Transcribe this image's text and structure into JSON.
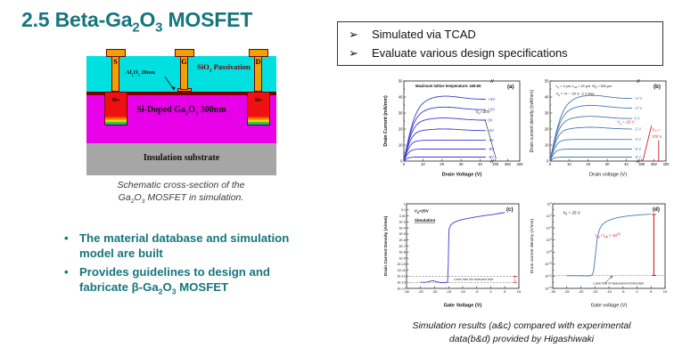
{
  "accent_teal": "#15767d",
  "title_html": "2.5 Beta-Ga<sub>2</sub>O<sub>3</sub> MOSFET",
  "tcad_box": {
    "glyph": "➢",
    "items": [
      "Simulated via TCAD",
      "Evaluate various design specifications"
    ]
  },
  "schematic": {
    "electrodes": {
      "source": "S",
      "gate": "G",
      "drain": "D"
    },
    "passivation_html": "SiO<sub>2</sub> Passivation",
    "gate_oxide_html": "Al<sub>2</sub>O<sub>3</sub> 20nm",
    "si_plus": "Si+",
    "channel_html": "Si-Doped Ga<sub>2</sub>O<sub>3</sub> 300nm",
    "substrate": "Insulation substrate",
    "colors": {
      "passivation": "#00e0e0",
      "oxide": "#7b0000",
      "channel": "#e800e8",
      "substrate": "#a6a6a6",
      "electrode": "#f0a202",
      "si_plus": "#ee1111"
    },
    "caption_html": "Schematic cross-section of the<br>Ga<sub>2</sub>O<sub>3</sub> MOSFET in simulation."
  },
  "bullets": {
    "glyph": "•",
    "items_html": [
      "The material database and simulation model are built",
      "Provides guidelines to design and fabricate β-Ga<sub>2</sub>O<sub>3</sub> MOSFET"
    ]
  },
  "figure_caption_html": "Simulation results (a&amp;c) compared with experimental<br>data(b&amp;d) provided by Higashiwaki",
  "chart_data": [
    {
      "id": "a",
      "type": "line",
      "variant": "output",
      "panel": "(a)",
      "xlabel": "Drain Voltage (V)",
      "ylabel": "Drain Current (mA/mm)",
      "axis_bold": true,
      "x_segments": [
        {
          "range": [
            0,
            45
          ],
          "ticks": [
            0,
            10,
            20,
            30,
            40
          ]
        },
        {
          "range": [
            295,
            400
          ],
          "ticks": [
            300,
            350,
            400
          ]
        }
      ],
      "ylim": [
        0,
        50
      ],
      "yticks": [
        0,
        10,
        20,
        30,
        40,
        50
      ],
      "curve_color": "#3a3ad0",
      "series": [
        {
          "label": "+4V",
          "vg": 4,
          "isat_mA_mm": 38.5
        },
        {
          "label": "+2V",
          "vg": 2,
          "isat_mA_mm": 32
        },
        {
          "label": "0V",
          "vg": 0,
          "isat_mA_mm": 25.5
        },
        {
          "label": "-2V",
          "vg": -2,
          "isat_mA_mm": 19
        },
        {
          "label": "-4V",
          "vg": -4,
          "isat_mA_mm": 13
        },
        {
          "label": "-6V",
          "vg": -6,
          "isat_mA_mm": 7.5
        },
        {
          "label": "-8V",
          "vg": -8,
          "isat_mA_mm": 2.5
        }
      ],
      "notes": [
        {
          "html": "Maximum lattice temperature: 449.6K",
          "fx": 0.1,
          "fy": 0.075,
          "bold": true,
          "size": 4.2
        }
      ],
      "annotations": [
        {
          "kind": "text",
          "html": "V<sub>g</sub>=-20V",
          "fx": 0.62,
          "fy": 0.4,
          "color": "#111",
          "size": 4.2
        },
        {
          "kind": "line",
          "fx1": 0.7,
          "fy1": 0.48,
          "fx2": 0.795,
          "fy2": 0.97,
          "color": "#111",
          "w": 0.6
        }
      ]
    },
    {
      "id": "b",
      "type": "line",
      "variant": "output",
      "panel": "(b)",
      "xlabel": "Drain voltage (V)",
      "ylabel": "Drain current density (mA/mm)",
      "axis_bold": false,
      "x_segments": [
        {
          "range": [
            0,
            45
          ],
          "ticks": [
            0,
            10,
            20,
            30,
            40
          ]
        },
        {
          "range": [
            295,
            400
          ],
          "ticks": [
            300,
            350,
            400
          ]
        }
      ],
      "ylim": [
        0,
        50
      ],
      "yticks": [
        0,
        10,
        20,
        30,
        40,
        50
      ],
      "curve_color": "#4878b0",
      "series": [
        {
          "label": "+4 V",
          "vg": 4,
          "isat_mA_mm": 39
        },
        {
          "label": "+2 V",
          "vg": 2,
          "isat_mA_mm": 33
        },
        {
          "label": "0 V",
          "vg": 0,
          "isat_mA_mm": 26.5
        },
        {
          "label": "-2 V",
          "vg": -2,
          "isat_mA_mm": 20
        },
        {
          "label": "-4 V",
          "vg": -4,
          "isat_mA_mm": 13.5
        },
        {
          "label": "-6 V",
          "vg": -6,
          "isat_mA_mm": 7.5
        },
        {
          "label": "-8 V",
          "vg": -8,
          "isat_mA_mm": 2.5
        }
      ],
      "notes": [
        {
          "html": "L<sub>g</sub> = 2 μm, L<sub>sd</sub> = 20 μm, W<sub>g</sub> = 500 μm",
          "fx": 0.05,
          "fy": 0.075,
          "size": 3.8
        },
        {
          "html": "V<sub>g</sub> = +4 ~ -20 V, -2 V step",
          "fx": 0.05,
          "fy": 0.17,
          "size": 3.8
        }
      ],
      "annotations": [
        {
          "kind": "text",
          "html": "V<sub>g</sub> = -20 V",
          "fx": 0.58,
          "fy": 0.53,
          "color": "#cc2222",
          "size": 4.2
        },
        {
          "kind": "line",
          "fx1": 0.8,
          "fy1": 1.0,
          "fx2": 0.875,
          "fy2": 0.555,
          "color": "#cc2222",
          "w": 0.9
        },
        {
          "kind": "line",
          "fx1": 0.937,
          "fy1": 1.0,
          "fx2": 0.937,
          "fy2": 0.74,
          "color": "#cc2222",
          "w": 0.9
        },
        {
          "kind": "text",
          "html": "V<sub>br</sub> =",
          "fx": 0.88,
          "fy": 0.62,
          "color": "#cc2222",
          "size": 4.2
        },
        {
          "kind": "text",
          "html": "370 V",
          "fx": 0.88,
          "fy": 0.71,
          "color": "#cc2222",
          "size": 4.2
        },
        {
          "kind": "line",
          "fx1": 0.78,
          "fy1": 1.0,
          "fx2": 1.0,
          "fy2": 1.0,
          "color": "#cc2222",
          "w": 0.8,
          "dash": "1,1.5"
        }
      ]
    },
    {
      "id": "c",
      "type": "line",
      "variant": "transfer",
      "panel": "(c)",
      "xlabel": "Gate Voltage (V)",
      "ylabel": "Drain Current Density (A/mm)",
      "axis_bold": true,
      "xlim": [
        -30,
        10
      ],
      "xticks": [
        -30,
        -25,
        -20,
        -15,
        -10,
        -5,
        0,
        5,
        10
      ],
      "y_decades": [
        0,
        -14
      ],
      "ytick_labels": [
        "1",
        "0.1",
        "0.01",
        "1E-3",
        "1E-4",
        "1E-5",
        "1E-6",
        "1E-7",
        "1E-8",
        "1E-9",
        "1E-10",
        "1E-11",
        "1E-12",
        "1E-13",
        "1E-14"
      ],
      "curve_color": "#3a3ad0",
      "points_vg_logI": [
        [
          -25,
          -13
        ],
        [
          -23,
          -13
        ],
        [
          -21.5,
          -12.8
        ],
        [
          -20.5,
          -12.7
        ],
        [
          -19.5,
          -12.9
        ],
        [
          -18,
          -13.05
        ],
        [
          -16.5,
          -13.05
        ],
        [
          -15.4,
          -13
        ],
        [
          -15.15,
          -10
        ],
        [
          -15.0,
          -6
        ],
        [
          -14.85,
          -4.2
        ],
        [
          -14.3,
          -3.5
        ],
        [
          -13,
          -3.05
        ],
        [
          -11,
          -2.7
        ],
        [
          -8,
          -2.4
        ],
        [
          -5,
          -2.15
        ],
        [
          -2,
          -1.95
        ],
        [
          1,
          -1.75
        ],
        [
          3.5,
          -1.55
        ],
        [
          5,
          -1.45
        ]
      ],
      "notes": [
        {
          "html": "V<sub>d</sub>=25V",
          "fx": 0.07,
          "fy": 0.1,
          "bold": true,
          "size": 4.6
        },
        {
          "html": "Simulation",
          "fx": 0.07,
          "fy": 0.21,
          "bold": true,
          "underline": true,
          "size": 4.6
        }
      ],
      "hlines": [
        {
          "exp": -12,
          "dash": "2,1.6",
          "color": "#555"
        },
        {
          "exp": -13,
          "dash": "2,1.6",
          "color": "#555"
        }
      ],
      "annotations": [
        {
          "kind": "text",
          "html": "Lower than the measured limit",
          "fx": 0.42,
          "fy": 0.905,
          "color": "#333",
          "size": 3.3
        },
        {
          "kind": "errbar",
          "fx": 0.965,
          "exp_top": -12,
          "exp_bot": -13,
          "color": "#cc2222",
          "dash": "1.2,1",
          "w": 0.8
        }
      ]
    },
    {
      "id": "d",
      "type": "line",
      "variant": "transfer",
      "panel": "(d)",
      "xlabel": "Gate voltage (V)",
      "ylabel": "Drain current density (A/mm)",
      "axis_bold": false,
      "xlim": [
        -30,
        10
      ],
      "xticks": [
        -30,
        -25,
        -20,
        -15,
        -10,
        -5,
        0,
        5,
        10
      ],
      "y_decades": [
        0,
        -14
      ],
      "ytick_exponents": [
        0,
        -2,
        -4,
        -6,
        -8,
        -10,
        -12,
        -14
      ],
      "curve_color": "#4878b0",
      "points_vg_logI": [
        [
          -25,
          -11.9
        ],
        [
          -22,
          -11.9
        ],
        [
          -19,
          -11.92
        ],
        [
          -17,
          -11.95
        ],
        [
          -16,
          -11.8
        ],
        [
          -15.5,
          -11.2
        ],
        [
          -15.1,
          -9.8
        ],
        [
          -14.6,
          -7.5
        ],
        [
          -14.1,
          -5.6
        ],
        [
          -13.4,
          -4.3
        ],
        [
          -12.5,
          -3.5
        ],
        [
          -11,
          -2.95
        ],
        [
          -9,
          -2.55
        ],
        [
          -7,
          -2.3
        ],
        [
          -4,
          -2.05
        ],
        [
          -1,
          -1.9
        ],
        [
          2,
          -1.8
        ],
        [
          5,
          -1.72
        ]
      ],
      "notes": [
        {
          "html": "V<sub>d</sub> = 25 V",
          "fx": 0.09,
          "fy": 0.12,
          "size": 4.6
        }
      ],
      "hlines": [
        {
          "exp": -11.85,
          "dash": "0.8,1",
          "color": "#333"
        }
      ],
      "annotations": [
        {
          "kind": "text",
          "html": "I<sub>on</sub> / I<sub>off</sub> > 10<sup>10</sup>",
          "fx": 0.38,
          "fy": 0.39,
          "color": "#cc2222",
          "size": 4.6,
          "italic": true
        },
        {
          "kind": "errbar",
          "fx": 0.9,
          "exp_top": -1.75,
          "exp_bot": -11.85,
          "color": "#cc2222",
          "w": 1.1
        },
        {
          "kind": "text",
          "html": "Lower limit of measurement instrument",
          "fx": 0.36,
          "fy": 0.95,
          "color": "#222",
          "size": 3.3
        },
        {
          "kind": "line",
          "fx1": 0.47,
          "fy1": 0.93,
          "fx2": 0.53,
          "fy2": 0.855,
          "color": "#222",
          "w": 0.5,
          "arrow": true
        }
      ]
    }
  ]
}
